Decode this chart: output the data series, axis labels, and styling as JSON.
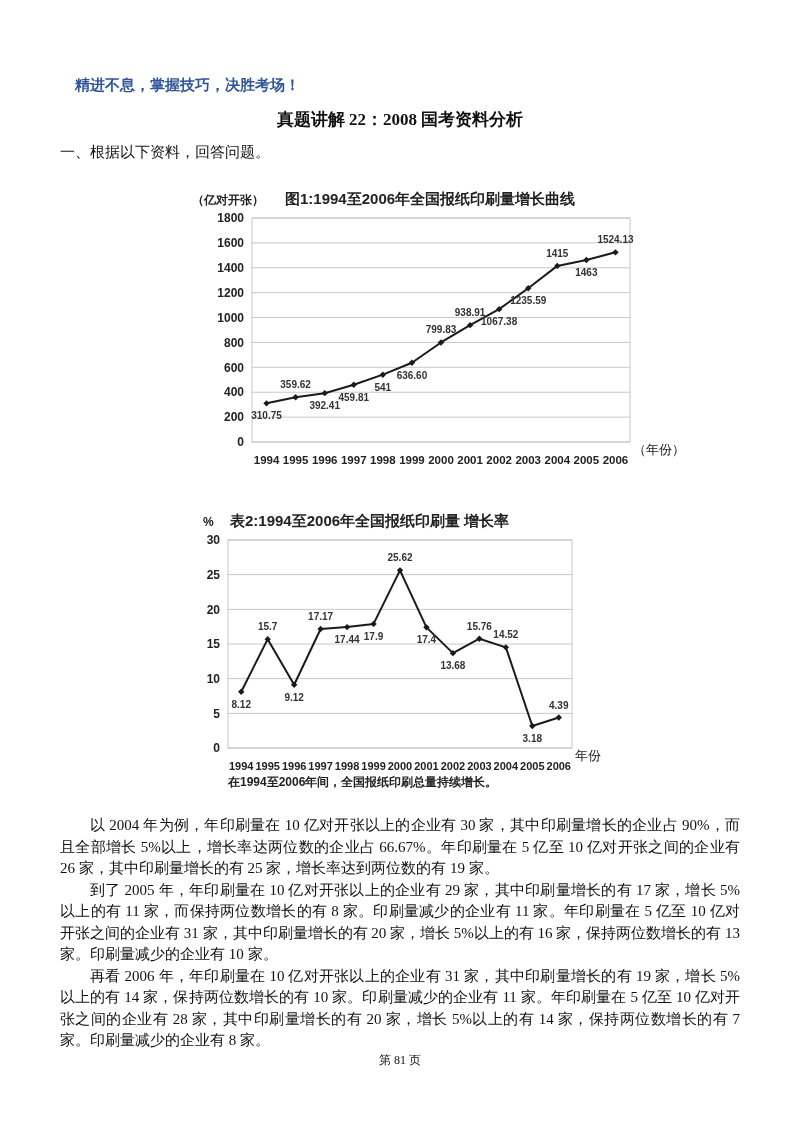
{
  "chart_data": [
    {
      "type": "line",
      "title": "图1:1994至2006年全国报纸印刷量增长曲线",
      "ylabel": "（亿对开张）",
      "xlabel": "（年份）",
      "annotations": [
        "精进不息，掌握技巧，决胜考场！",
        "真题讲解 22：2008 国考资料分析",
        "一、根据以下资料，回答问题。"
      ],
      "categories": [
        "1994",
        "1995",
        "1996",
        "1997",
        "1998",
        "1999",
        "2000",
        "2001",
        "2002",
        "2003",
        "2004",
        "2005",
        "2006"
      ],
      "series": [
        {
          "color": "#1a1a1a",
          "values": [
            310.75,
            359.62,
            392.41,
            459.81,
            541,
            636.6,
            799.83,
            938.91,
            1067.38,
            1235.59,
            1415,
            1463,
            1524.13
          ],
          "value_labels": [
            "310.75",
            "359.62",
            "392.41",
            "459.81",
            "541",
            "636.60",
            "799.83",
            "938.91",
            "1067.38",
            "1235.59",
            "1415",
            "1463",
            "1524.13"
          ]
        }
      ],
      "ylim": [
        0,
        1800
      ],
      "yticks": [
        0,
        200,
        400,
        600,
        800,
        1000,
        1200,
        1400,
        1600,
        1800
      ],
      "grid": "y",
      "marker": "diamond",
      "line_style": "solid"
    },
    {
      "type": "line",
      "title": "表2:1994至2006年全国报纸印刷量 增长率",
      "ylabel": "%",
      "xlabel": "年份",
      "annotations": [
        "在1994至2006年间，全国报纸印刷总量持续增长。",
        "以 2004 年为例，年印刷量在 10 亿对开张以上的企业有 30 家，其中印刷量增长的企业占 90%，而且全部增长 5%以上，增长率达两位数的企业占 66.67%。年印刷量在 5 亿至 10 亿对开张之间的企业有 26 家，其中印刷量增长的有 25 家，增长率达到两位数的有 19 家。",
        "到了 2005 年，年印刷量在 10 亿对开张以上的企业有 29 家，其中印刷量增长的有 17 家，增长 5%以上的有 11 家，而保持两位数增长的有 8 家。印刷量减少的企业有 11 家。年印刷量在 5 亿至 10 亿对开张之间的企业有 31 家，其中印刷量增长的有 20 家，增长 5%以上的有 16 家，保持两位数增长的有 13 家。印刷量减少的企业有 10 家。",
        "再看 2006 年，年印刷量在 10 亿对开张以上的企业有 31 家，其中印刷量增长的有 19 家，增长 5%以上的有 14 家，保持两位数增长的有 10 家。印刷量减少的企业有 11 家。年印刷量在 5 亿至 10 亿对开张之间的企业有 28 家，其中印刷量增长的有 20 家，增长 5%以上的有 14 家，保持两位数增长的有 7 家。印刷量减少的企业有 8 家。",
        "第 81 页"
      ],
      "categories": [
        "1994",
        "1995",
        "1996",
        "1997",
        "1998",
        "1999",
        "2000",
        "2001",
        "2002",
        "2003",
        "2004",
        "2005",
        "2006"
      ],
      "series": [
        {
          "color": "#1a1a1a",
          "values": [
            8.12,
            15.7,
            9.12,
            17.17,
            17.44,
            17.9,
            25.62,
            17.4,
            13.68,
            15.76,
            14.52,
            3.18,
            4.39
          ],
          "value_labels": [
            "8.12",
            "15.7",
            "9.12",
            "17.17",
            "17.44",
            "17.9",
            "25.62",
            "17.4",
            "13.68",
            "15.76",
            "14.52",
            "3.18",
            "4.39"
          ]
        }
      ],
      "ylim": [
        0,
        30
      ],
      "yticks": [
        0,
        5,
        10,
        15,
        20,
        25,
        30
      ],
      "grid": "y",
      "marker": "diamond",
      "line_style": "solid"
    }
  ]
}
